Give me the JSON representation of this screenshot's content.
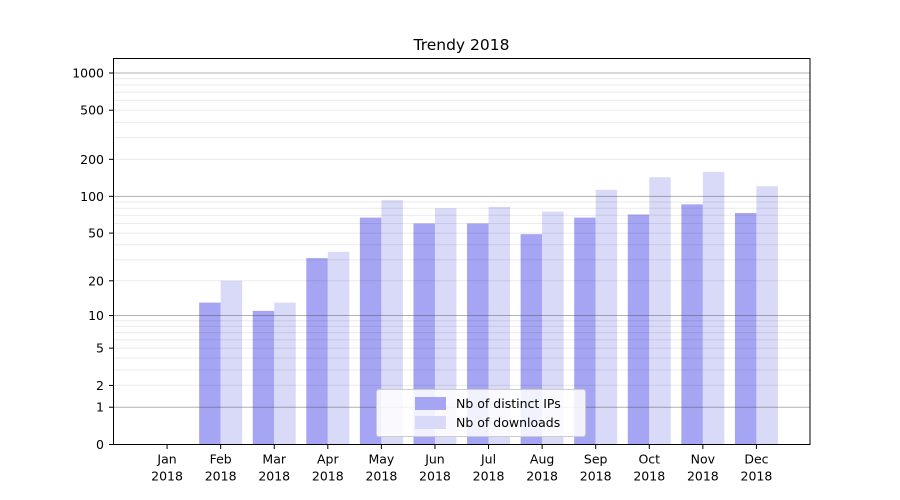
{
  "chart_data": {
    "type": "bar",
    "title": "Trendy 2018",
    "xlabel": "",
    "ylabel": "",
    "categories": [
      {
        "month": "Jan",
        "year": "2018"
      },
      {
        "month": "Feb",
        "year": "2018"
      },
      {
        "month": "Mar",
        "year": "2018"
      },
      {
        "month": "Apr",
        "year": "2018"
      },
      {
        "month": "May",
        "year": "2018"
      },
      {
        "month": "Jun",
        "year": "2018"
      },
      {
        "month": "Jul",
        "year": "2018"
      },
      {
        "month": "Aug",
        "year": "2018"
      },
      {
        "month": "Sep",
        "year": "2018"
      },
      {
        "month": "Oct",
        "year": "2018"
      },
      {
        "month": "Nov",
        "year": "2018"
      },
      {
        "month": "Dec",
        "year": "2018"
      }
    ],
    "series": [
      {
        "name": "Nb of distinct IPs",
        "color": "#a5a5f4",
        "values": [
          0,
          13,
          11,
          31,
          67,
          60,
          60,
          49,
          67,
          71,
          86,
          73
        ]
      },
      {
        "name": "Nb of downloads",
        "color": "#d9d9f8",
        "values": [
          0,
          20,
          13,
          35,
          93,
          80,
          82,
          75,
          113,
          143,
          158,
          121
        ]
      }
    ],
    "y_axis": {
      "scale": "log1p",
      "ylim": [
        0,
        1325
      ],
      "tick_labels": [
        0,
        1,
        2,
        5,
        10,
        20,
        50,
        100,
        200,
        500,
        1000
      ],
      "major_gridline_values": [
        1,
        10,
        100,
        1000
      ],
      "minor_gridline_values": [
        2,
        3,
        4,
        5,
        6,
        7,
        8,
        9,
        20,
        30,
        40,
        50,
        60,
        70,
        80,
        90,
        200,
        300,
        400,
        500,
        600,
        700,
        800,
        900
      ],
      "major_grid_color": "#c3c3c3",
      "minor_grid_color": "#ebebeb"
    },
    "legend": {
      "position": "lower-center",
      "entries": [
        "Nb of distinct IPs",
        "Nb of downloads"
      ]
    },
    "grid": true,
    "axis_color": "#000000",
    "background_color": "#ffffff"
  }
}
